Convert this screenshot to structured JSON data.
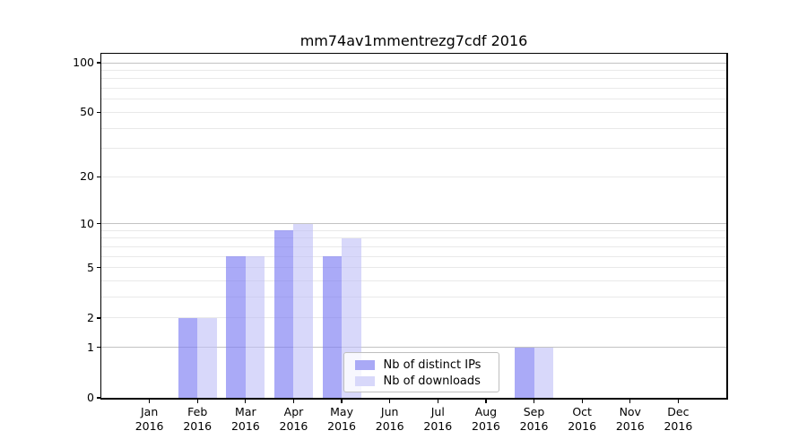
{
  "chart_data": {
    "type": "bar",
    "title": "mm74av1mmentrezg7cdf 2016",
    "x": {
      "categories": [
        "Jan",
        "Feb",
        "Mar",
        "Apr",
        "May",
        "Jun",
        "Jul",
        "Aug",
        "Sep",
        "Oct",
        "Nov",
        "Dec"
      ],
      "year": "2016"
    },
    "series": [
      {
        "key": "distinct-ips",
        "name": "Nb of distinct IPs",
        "values": [
          0,
          2,
          6,
          9,
          6,
          0,
          0,
          0,
          1,
          0,
          0,
          0
        ],
        "fill": "rgba(124,124,242,0.65)",
        "legend_color": "#a9a9f6"
      },
      {
        "key": "downloads",
        "name": "Nb of downloads",
        "values": [
          0,
          2,
          6,
          10,
          8,
          0,
          0,
          0,
          1,
          0,
          0,
          0
        ],
        "fill": "rgba(190,190,246,0.60)",
        "legend_color": "#d8d8fa"
      }
    ],
    "y_axis": {
      "scale": "log10(1+value)",
      "tick_values": [
        0,
        1,
        2,
        5,
        10,
        20,
        50,
        100
      ],
      "grid_major_values": [
        1,
        10,
        100
      ],
      "grid_minor_values": [
        2,
        3,
        4,
        5,
        6,
        7,
        8,
        9,
        20,
        30,
        40,
        50,
        60,
        70,
        80,
        90
      ],
      "ylim": [
        0,
        114
      ]
    },
    "legend": {
      "position": "lower-center-right"
    },
    "colors": {
      "bar_distinct_ips": "#a9a9f6",
      "bar_downloads": "#d8d8fa",
      "grid_major": "#c3c3c3",
      "grid_minor": "#e9e9e9",
      "axis": "#000000",
      "text": "#000000",
      "legend_border": "#bfbfbf"
    }
  }
}
